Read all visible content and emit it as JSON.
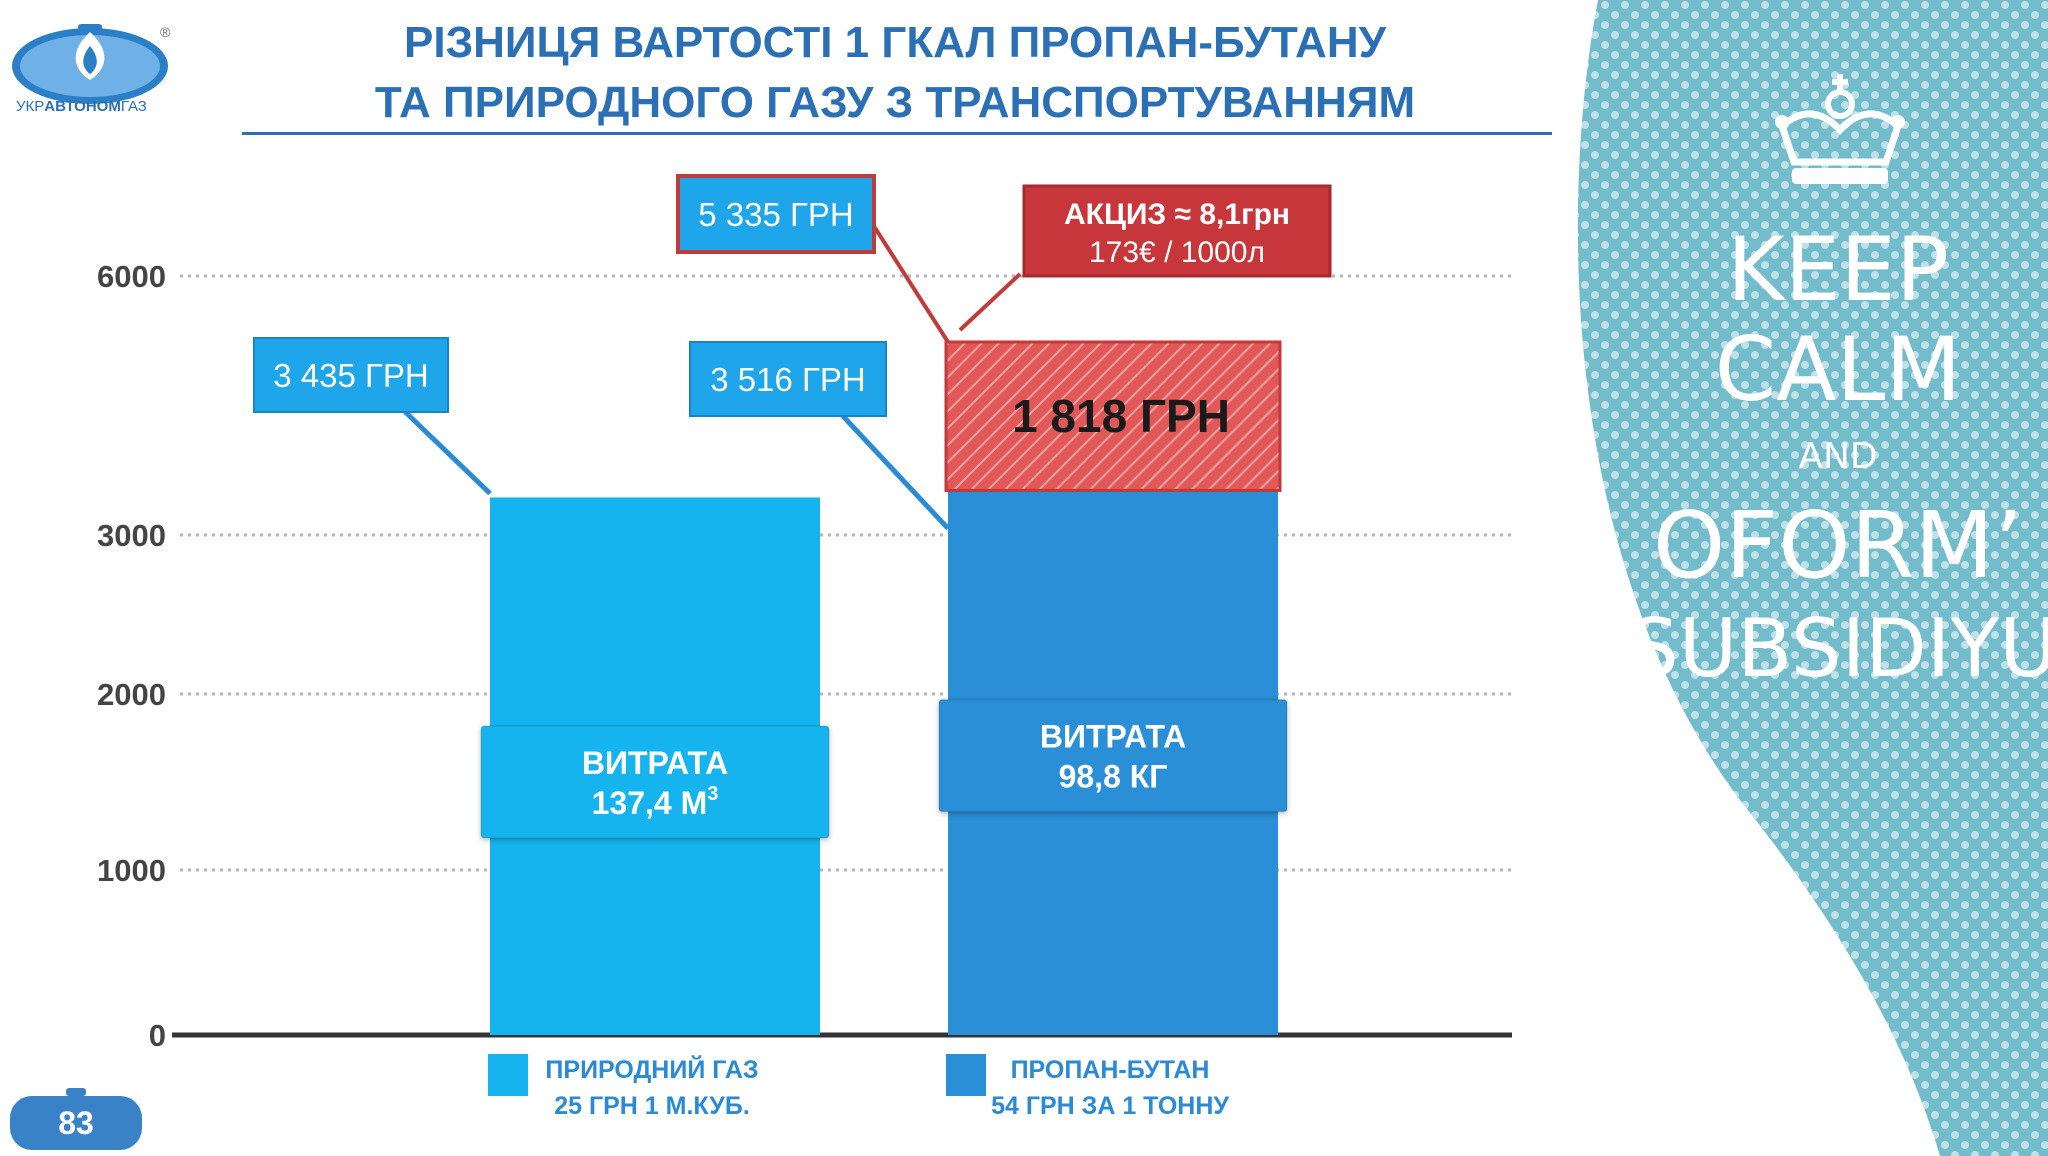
{
  "title": {
    "line1": "РІЗНИЦЯ ВАРТОСТІ 1 ГКАЛ ПРОПАН-БУТАНУ",
    "line2": "ТА ПРИРОДНОГО ГАЗУ З ТРАНСПОРТУВАННЯМ"
  },
  "logo": {
    "prefix": "УКР",
    "bold": "АВТОНОМ",
    "suffix": "ГАЗ",
    "reg": "®"
  },
  "page_number": "83",
  "keep_calm": {
    "line1": "KEEP",
    "line2": "CALM",
    "line3": "AND",
    "line4": "OFORM’",
    "line5": "SUBSIDIYU"
  },
  "colors": {
    "natural_gas": "#16b4ef",
    "propane": "#2a8fd6",
    "excise": "#e25757",
    "excise_border": "#c23a3a",
    "teal_panel": "#72bccb",
    "title": "#2b6fb5"
  },
  "chart_data": {
    "type": "bar",
    "stacked": true,
    "y_ticks": [
      "0",
      "1000",
      "2000",
      "3000",
      "6000"
    ],
    "y_tick_values": [
      0,
      1000,
      2000,
      3000,
      6000
    ],
    "bars": [
      {
        "legend_line1": "ПРИРОДНИЙ ГАЗ",
        "legend_line2": "25 ГРН 1 М.КУБ.",
        "value": 3435,
        "value_label": "3 435 ГРН",
        "inner_label_line1": "ВИТРАТА",
        "inner_label_line2": "137,4 М",
        "inner_label_sup": "3",
        "inner_label_value": 1500
      },
      {
        "legend_line1": "ПРОПАН-БУТАН",
        "legend_line2": "54 ГРН ЗА 1 ТОННУ",
        "value": 3516,
        "value_label": "3 516 ГРН",
        "inner_label_line1": "ВИТРАТА",
        "inner_label_line2": "98,8 КГ",
        "inner_label_value": 1650,
        "excise_value": 1818,
        "excise_label": "1 818 ГРН",
        "total_label": "5 335 ГРН",
        "excise_note_line1": "АКЦИЗ ≈ 8,1грн",
        "excise_note_line2": "173€ / 1000л"
      }
    ]
  }
}
